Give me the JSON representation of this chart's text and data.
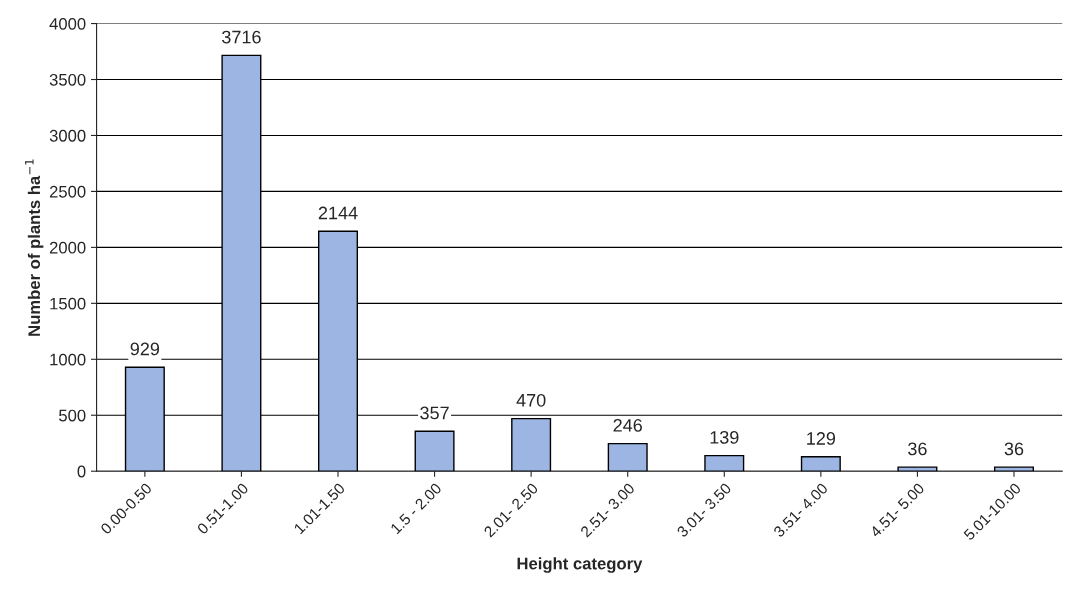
{
  "chart_data": {
    "type": "bar",
    "xlabel": "Height category",
    "ylabel": "Number of plants ha$^{−1}$",
    "categories": [
      "0.00-0.50",
      "0.51-1.00",
      "1.01-1.50",
      "1.5 - 2.00",
      "2.01- 2.50",
      "2.51- 3.00",
      "3.01- 3.50",
      "3.51- 4.00",
      "4.51- 5.00",
      "5.01-10.00"
    ],
    "values": [
      929,
      3716,
      2144,
      357,
      470,
      246,
      139,
      129,
      36,
      36
    ],
    "color": "#9db5e3",
    "ylim": [
      0,
      4000
    ],
    "yticks": [
      0,
      500,
      1000,
      1500,
      2000,
      2500,
      3000,
      3500,
      4000
    ],
    "grid": "y",
    "data_labels": true
  }
}
